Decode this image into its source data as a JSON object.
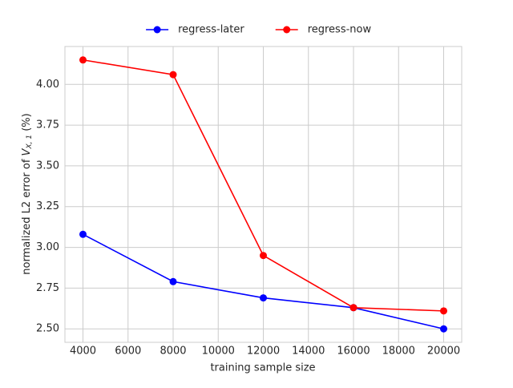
{
  "chart_data": {
    "type": "line",
    "xlabel": "training sample size",
    "ylabel": {
      "text": "normalized L2 error of ",
      "var": "V",
      "sub": "X, 1",
      "suffix": " (%)"
    },
    "x": [
      4000,
      8000,
      12000,
      16000,
      20000
    ],
    "series": [
      {
        "name": "regress-later",
        "color": "#0000ff",
        "values": [
          3.08,
          2.79,
          2.69,
          2.63,
          2.5
        ]
      },
      {
        "name": "regress-now",
        "color": "#ff0000",
        "values": [
          4.15,
          4.06,
          2.95,
          2.63,
          2.61
        ]
      }
    ],
    "xlim": [
      3200,
      20800
    ],
    "xticks": [
      4000,
      6000,
      8000,
      10000,
      12000,
      14000,
      16000,
      18000,
      20000
    ],
    "ylim": [
      2.4175,
      4.2325
    ],
    "yticks": [
      {
        "value": 2.5,
        "label": "2.50"
      },
      {
        "value": 2.75,
        "label": "2.75"
      },
      {
        "value": 3.0,
        "label": "3.00"
      },
      {
        "value": 3.25,
        "label": "3.25"
      },
      {
        "value": 3.5,
        "label": "3.50"
      },
      {
        "value": 3.75,
        "label": "3.75"
      },
      {
        "value": 4.0,
        "label": "4.00"
      }
    ],
    "grid": true,
    "legend": "top"
  }
}
